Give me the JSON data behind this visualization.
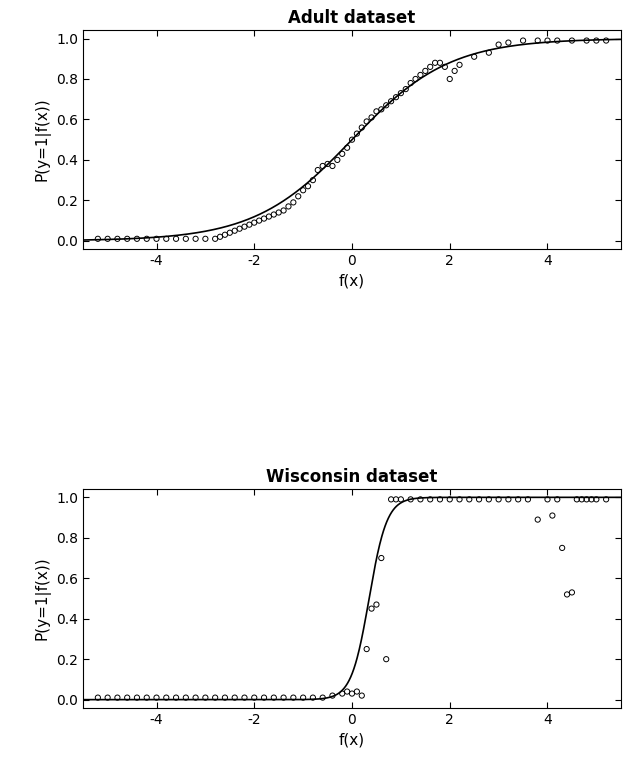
{
  "adult_title": "Adult dataset",
  "wisconsin_title": "Wisconsin dataset",
  "xlabel": "f(x)",
  "adult_ylabel": "P(y=1|f(x))",
  "wisc_ylabel": "P(y=1|f(x))",
  "xlim": [
    -5.5,
    5.5
  ],
  "ylim": [
    -0.04,
    1.04
  ],
  "xticks": [
    -4,
    -2,
    0,
    2,
    4
  ],
  "yticks": [
    0.0,
    0.2,
    0.4,
    0.6,
    0.8,
    1.0
  ],
  "ytick_labels": [
    "0.0",
    "0.2",
    "0.4",
    "0.6",
    "0.8",
    "1.0"
  ],
  "adult_sig_B": 1.0,
  "adult_sig_C": 0.0,
  "adult_scatter_x": [
    -5.2,
    -5.0,
    -4.8,
    -4.6,
    -4.4,
    -4.2,
    -4.0,
    -3.8,
    -3.6,
    -3.4,
    -3.2,
    -3.0,
    -2.8,
    -2.7,
    -2.6,
    -2.5,
    -2.4,
    -2.3,
    -2.2,
    -2.1,
    -2.0,
    -1.9,
    -1.8,
    -1.7,
    -1.6,
    -1.5,
    -1.4,
    -1.3,
    -1.2,
    -1.1,
    -1.0,
    -0.9,
    -0.8,
    -0.7,
    -0.6,
    -0.5,
    -0.4,
    -0.3,
    -0.2,
    -0.1,
    0.0,
    0.1,
    0.2,
    0.3,
    0.4,
    0.5,
    0.6,
    0.7,
    0.8,
    0.9,
    1.0,
    1.1,
    1.2,
    1.3,
    1.4,
    1.5,
    1.6,
    1.7,
    1.8,
    1.9,
    2.0,
    2.1,
    2.2,
    2.5,
    2.8,
    3.0,
    3.2,
    3.5,
    3.8,
    4.0,
    4.2,
    4.5,
    4.8,
    5.0,
    5.2
  ],
  "adult_scatter_y": [
    0.01,
    0.01,
    0.01,
    0.01,
    0.01,
    0.01,
    0.01,
    0.01,
    0.01,
    0.01,
    0.01,
    0.01,
    0.01,
    0.02,
    0.03,
    0.04,
    0.05,
    0.06,
    0.07,
    0.08,
    0.09,
    0.1,
    0.11,
    0.12,
    0.13,
    0.14,
    0.15,
    0.17,
    0.19,
    0.22,
    0.25,
    0.27,
    0.3,
    0.35,
    0.37,
    0.38,
    0.37,
    0.4,
    0.43,
    0.46,
    0.5,
    0.53,
    0.56,
    0.59,
    0.61,
    0.64,
    0.65,
    0.67,
    0.69,
    0.71,
    0.73,
    0.75,
    0.78,
    0.8,
    0.82,
    0.84,
    0.86,
    0.88,
    0.88,
    0.86,
    0.8,
    0.84,
    0.87,
    0.91,
    0.93,
    0.97,
    0.98,
    0.99,
    0.99,
    0.99,
    0.99,
    0.99,
    0.99,
    0.99,
    0.99
  ],
  "wisc_sig_B": 5.5,
  "wisc_sig_C": 0.35,
  "wisc_scatter_x": [
    -5.2,
    -5.0,
    -4.8,
    -4.6,
    -4.4,
    -4.2,
    -4.0,
    -3.8,
    -3.6,
    -3.4,
    -3.2,
    -3.0,
    -2.8,
    -2.6,
    -2.4,
    -2.2,
    -2.0,
    -1.8,
    -1.6,
    -1.4,
    -1.2,
    -1.0,
    -0.8,
    -0.6,
    -0.4,
    -0.2,
    -0.1,
    0.0,
    0.1,
    0.2,
    0.3,
    0.4,
    0.5,
    0.6,
    0.7,
    0.8,
    0.9,
    1.0,
    1.2,
    1.4,
    1.6,
    1.8,
    2.0,
    2.2,
    2.4,
    2.6,
    2.8,
    3.0,
    3.2,
    3.4,
    3.6,
    3.8,
    4.0,
    4.1,
    4.2,
    4.3,
    4.4,
    4.5,
    4.6,
    4.7,
    4.8,
    4.9,
    5.0,
    5.2
  ],
  "wisc_scatter_y": [
    0.01,
    0.01,
    0.01,
    0.01,
    0.01,
    0.01,
    0.01,
    0.01,
    0.01,
    0.01,
    0.01,
    0.01,
    0.01,
    0.01,
    0.01,
    0.01,
    0.01,
    0.01,
    0.01,
    0.01,
    0.01,
    0.01,
    0.01,
    0.01,
    0.02,
    0.03,
    0.04,
    0.03,
    0.04,
    0.02,
    0.25,
    0.45,
    0.47,
    0.7,
    0.2,
    0.99,
    0.99,
    0.99,
    0.99,
    0.99,
    0.99,
    0.99,
    0.99,
    0.99,
    0.99,
    0.99,
    0.99,
    0.99,
    0.99,
    0.99,
    0.99,
    0.89,
    0.99,
    0.91,
    0.99,
    0.75,
    0.52,
    0.53,
    0.99,
    0.99,
    0.99,
    0.99,
    0.99,
    0.99
  ],
  "line_color": "#000000",
  "marker_facecolor": "none",
  "marker_edgecolor": "#000000",
  "bg_color": "#ffffff",
  "title_fontsize": 12,
  "label_fontsize": 11,
  "tick_fontsize": 10,
  "marker_size": 14,
  "marker_linewidth": 0.7,
  "line_width": 1.2
}
